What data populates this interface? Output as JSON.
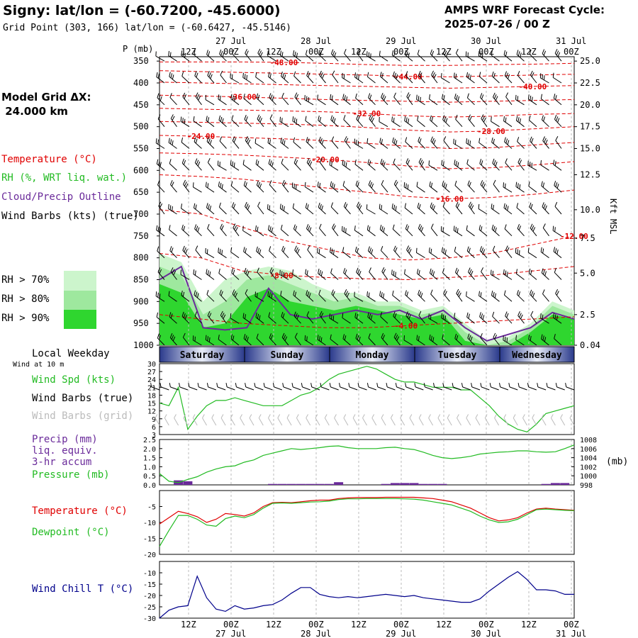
{
  "header": {
    "title": "Signy:  lat/lon = (-60.7200, -45.6000)",
    "grid_point": "Grid Point (303, 166) lat/lon = (-60.6427, -45.5146)",
    "cycle_line1": "AMPS WRF Forecast Cycle:",
    "cycle_line2": "2025-07-26 / 00  Z"
  },
  "side_labels": {
    "model_grid_1": "Model Grid ΔX:",
    "model_grid_2": " 24.000 km",
    "temperature": "Temperature (°C)",
    "rh": "RH (%, WRT liq. wat.)",
    "cloud": "Cloud/Precip Outline",
    "wind_barbs": "Wind Barbs (kts) (true)",
    "rh70": "RH > 70%",
    "rh80": "RH > 80%",
    "rh90": "RH > 90%",
    "local_weekday": "Local Weekday",
    "wind_at_10m": "Wind at 10 m",
    "wind_spd": "Wind Spd (kts)",
    "wind_barbs_true": "Wind Barbs (true)",
    "wind_barbs_grid": "Wind Barbs (grid)",
    "precip": "Precip (mm)",
    "liq_equiv": "liq. equiv.",
    "accum": "3-hr accum",
    "pressure": "Pressure (mb)",
    "temperature2": "Temperature (°C)",
    "dewpoint": "Dewpoint (°C)",
    "wind_chill": "Wind Chill T (°C)",
    "p_mb": "P (mb)",
    "kft": "Kft MSL",
    "mb_right": "(mb)"
  },
  "colors": {
    "temperature": "#e00000",
    "rh": "#22bb22",
    "cloud": "#6a2a9a",
    "barb_grid": "#bbbbbb",
    "wind_chill": "#00008b",
    "rh70": "#ccf5cc",
    "rh80": "#9ee89e",
    "rh90": "#2fd62f"
  },
  "chart_data": [
    {
      "id": "cross_section",
      "type": "heatmap",
      "time_labels": [
        "12Z",
        "00Z",
        "12Z",
        "00Z",
        "12Z",
        "00Z",
        "12Z",
        "00Z",
        "12Z",
        "00Z"
      ],
      "date_labels": [
        "27 Jul",
        "28 Jul",
        "29 Jul",
        "30 Jul",
        "31 Jul"
      ],
      "pressure_levels": [
        350,
        400,
        450,
        500,
        550,
        600,
        650,
        700,
        750,
        800,
        850,
        900,
        950,
        1000
      ],
      "height_kft": [
        "25.0",
        "22.5",
        "20.0",
        "17.5",
        "15.0",
        "12.5",
        "10.0",
        "7.5",
        "5.0",
        "2.5",
        "0.04"
      ],
      "height_kft_pressure": [
        350,
        400,
        450,
        500,
        550,
        610,
        690,
        755,
        835,
        930,
        1000
      ],
      "temperature_contours": [
        {
          "value": -48,
          "label": "-48.00",
          "p": [
            352,
            352,
            352,
            353,
            355,
            358,
            360,
            360,
            358,
            357,
            355
          ]
        },
        {
          "value": -44,
          "label": "-44.00",
          "p": [
            372,
            374,
            376,
            378,
            380,
            382,
            385,
            386,
            384,
            382,
            380
          ]
        },
        {
          "value": -40,
          "label": "-40.00",
          "p": [
            398,
            400,
            402,
            404,
            406,
            408,
            410,
            412,
            410,
            408,
            406
          ]
        },
        {
          "value": -36,
          "label": "-36.00",
          "p": [
            428,
            430,
            432,
            435,
            438,
            440,
            442,
            444,
            442,
            440,
            438
          ]
        },
        {
          "value": -32,
          "label": "-32.00",
          "p": [
            458,
            460,
            462,
            464,
            466,
            470,
            475,
            478,
            476,
            472,
            470
          ]
        },
        {
          "value": -28,
          "label": "-28.00",
          "p": [
            488,
            490,
            492,
            494,
            497,
            502,
            508,
            512,
            510,
            505,
            500
          ]
        },
        {
          "value": -24,
          "label": "-24.00",
          "p": [
            520,
            522,
            525,
            528,
            532,
            538,
            545,
            550,
            548,
            542,
            536
          ]
        },
        {
          "value": -20,
          "label": "-20.00",
          "p": [
            560,
            562,
            565,
            570,
            575,
            582,
            590,
            596,
            594,
            588,
            580
          ]
        },
        {
          "value": -16,
          "label": "-16.00",
          "p": [
            610,
            614,
            620,
            630,
            640,
            650,
            660,
            665,
            662,
            655,
            645
          ]
        },
        {
          "value": -12,
          "label": "-12.00",
          "p": [
            690,
            700,
            730,
            760,
            780,
            800,
            805,
            800,
            790,
            770,
            750
          ]
        },
        {
          "value": -8,
          "label": "-8.00",
          "p": [
            790,
            800,
            830,
            840,
            845,
            848,
            850,
            845,
            840,
            830,
            820
          ]
        },
        {
          "value": -4,
          "label": "-4.00",
          "p": [
            930,
            940,
            950,
            955,
            960,
            960,
            955,
            950,
            945,
            940,
            935
          ]
        }
      ],
      "rh_regions": {
        "rh70_top_p": [
          790,
          810,
          900,
          850,
          830,
          820,
          830,
          860,
          880,
          880,
          900,
          900,
          920,
          910,
          950,
          990,
          980,
          950,
          900,
          920
        ],
        "rh80_top_p": [
          820,
          840,
          930,
          900,
          850,
          840,
          860,
          880,
          900,
          890,
          910,
          910,
          930,
          920,
          970,
          1000,
          990,
          960,
          910,
          930
        ],
        "rh90_top_p": [
          860,
          880,
          960,
          950,
          890,
          870,
          900,
          910,
          920,
          910,
          920,
          930,
          940,
          930,
          990,
          1000,
          1000,
          970,
          930,
          940
        ]
      },
      "cloud_outline_top_p": [
        850,
        820,
        960,
        965,
        960,
        870,
        930,
        940,
        930,
        920,
        930,
        920,
        940,
        920,
        960,
        990,
        975,
        960,
        925,
        940
      ],
      "wind_barbs": "grid of barbs (kts) for each pressure level and time step"
    },
    {
      "id": "wind_speed",
      "type": "line",
      "xlabel": "",
      "ylabel": "",
      "ylim": [
        3,
        30
      ],
      "yticks": [
        3,
        6,
        9,
        12,
        15,
        18,
        21,
        24,
        27,
        30
      ],
      "values": [
        15,
        14,
        21,
        5,
        10,
        14,
        16,
        16,
        17,
        16,
        15,
        14,
        14,
        14,
        16,
        18,
        19,
        21,
        24,
        26,
        27,
        28,
        29,
        28,
        26,
        24,
        23,
        23,
        22,
        21,
        21,
        21,
        20,
        20,
        17,
        14,
        10,
        7,
        5,
        4,
        7,
        11,
        12,
        13,
        14
      ]
    },
    {
      "id": "precip_pressure",
      "type": "bar",
      "precip_ylim": [
        0,
        2.5
      ],
      "precip_yticks": [
        "0.0",
        "0.5",
        "1.0",
        "1.5",
        "2.0",
        "2.5"
      ],
      "pressure_ylim": [
        998,
        1008
      ],
      "pressure_yticks": [
        998,
        1000,
        1002,
        1004,
        1006,
        1008
      ],
      "precip": [
        0.0,
        0.0,
        0.25,
        0.2,
        0.0,
        0.0,
        0.0,
        0.0,
        0.0,
        0.0,
        0.0,
        0.0,
        0.05,
        0.05,
        0.05,
        0.05,
        0.05,
        0.05,
        0.05,
        0.15,
        0.0,
        0.0,
        0.0,
        0.0,
        0.05,
        0.1,
        0.1,
        0.1,
        0.05,
        0.05,
        0.05,
        0.0,
        0.0,
        0.0,
        0.0,
        0.0,
        0.0,
        0.0,
        0.0,
        0.0,
        0.0,
        0.05,
        0.1,
        0.1,
        0.0
      ],
      "pressure": [
        1000.5,
        998.8,
        998.5,
        999.2,
        999.8,
        1000.8,
        1001.5,
        1002.0,
        1002.2,
        1003.0,
        1003.5,
        1004.5,
        1005.0,
        1005.5,
        1006.0,
        1005.8,
        1006.0,
        1006.2,
        1006.5,
        1006.6,
        1006.2,
        1006.0,
        1006.0,
        1006.0,
        1006.2,
        1006.3,
        1006.0,
        1005.8,
        1005.2,
        1004.5,
        1004.0,
        1003.8,
        1004.0,
        1004.3,
        1004.8,
        1005.0,
        1005.2,
        1005.3,
        1005.5,
        1005.5,
        1005.3,
        1005.2,
        1005.3,
        1006.0,
        1006.8
      ]
    },
    {
      "id": "temp_dewpoint",
      "type": "line",
      "ylim": [
        -20,
        0
      ],
      "yticks": [
        -20,
        -15,
        -10,
        -5
      ],
      "temperature": [
        -10.5,
        -8.5,
        -6.5,
        -7.2,
        -8.2,
        -10.0,
        -9.0,
        -7.2,
        -7.5,
        -8.0,
        -7.0,
        -5.0,
        -3.8,
        -3.7,
        -3.8,
        -3.5,
        -3.2,
        -3.0,
        -3.0,
        -2.5,
        -2.3,
        -2.2,
        -2.2,
        -2.2,
        -2.1,
        -2.1,
        -2.1,
        -2.1,
        -2.3,
        -2.5,
        -3.0,
        -3.5,
        -4.5,
        -5.5,
        -7.0,
        -8.5,
        -9.5,
        -9.2,
        -8.5,
        -7.0,
        -5.8,
        -5.5,
        -5.8,
        -6.0,
        -6.2
      ],
      "dewpoint": [
        -17.5,
        -12.5,
        -7.8,
        -7.8,
        -9.0,
        -10.8,
        -11.2,
        -8.8,
        -8.0,
        -8.5,
        -7.5,
        -5.5,
        -4.0,
        -3.9,
        -4.0,
        -3.8,
        -3.6,
        -3.5,
        -3.3,
        -2.8,
        -2.6,
        -2.6,
        -2.5,
        -2.5,
        -2.5,
        -2.5,
        -2.6,
        -2.7,
        -3.0,
        -3.5,
        -4.0,
        -4.5,
        -5.5,
        -6.5,
        -8.0,
        -9.2,
        -10.0,
        -9.8,
        -9.0,
        -7.5,
        -6.0,
        -5.8,
        -6.0,
        -6.2,
        -6.3
      ]
    },
    {
      "id": "wind_chill",
      "type": "line",
      "ylim": [
        -30,
        -5
      ],
      "yticks": [
        -30,
        -25,
        -20,
        -15,
        -10
      ],
      "values": [
        -30.0,
        -26.5,
        -25.0,
        -24.5,
        -11.5,
        -21.0,
        -26.0,
        -27.0,
        -24.5,
        -26.0,
        -25.5,
        -24.5,
        -24.0,
        -22.0,
        -19.0,
        -16.5,
        -16.5,
        -19.5,
        -20.5,
        -21.0,
        -20.5,
        -21.0,
        -20.5,
        -20.0,
        -19.5,
        -20.0,
        -20.5,
        -20.0,
        -21.0,
        -21.5,
        -22.0,
        -22.5,
        -23.0,
        -23.0,
        -21.5,
        -18.0,
        -15.0,
        -12.0,
        -9.5,
        -13.0,
        -17.5,
        -17.5,
        -18.0,
        -19.5,
        -19.5
      ]
    }
  ],
  "weekdays": [
    "Saturday",
    "Sunday",
    "Monday",
    "Tuesday",
    "Wednesday"
  ]
}
